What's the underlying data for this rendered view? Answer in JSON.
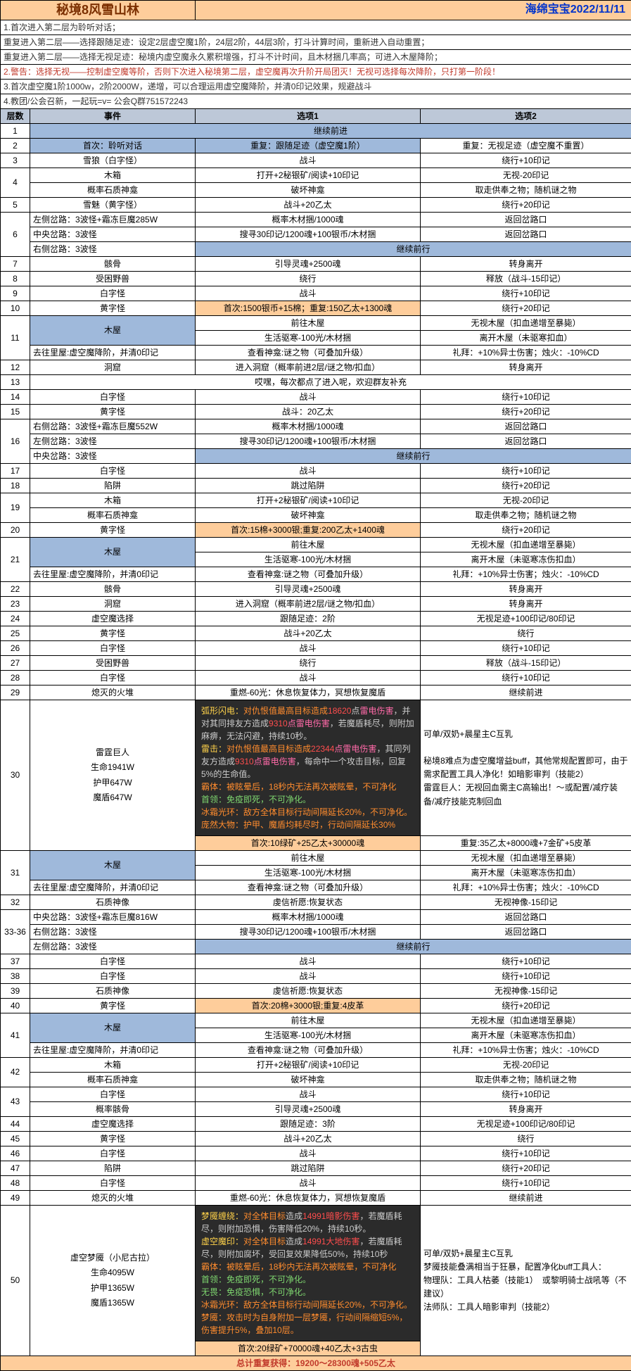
{
  "title": "秘境8风雪山林",
  "date_author": "海绵宝宝2022/11/11",
  "intro": {
    "l1": "1.首次进入第二层为聆听对话；",
    "l2": "重复进入第二层——选择跟随足迹：设定2层虚空魔1阶，24层2阶，44层3阶，打斗计算时间，重新进入自动重置；",
    "l3": "重复进入第二层——选择无视足迹：秘境内虚空魔永久累积增强，打斗不计时间，且木材捆几率高；可进入木屋降阶；",
    "l4": "2.警告：选择无视——控制虚空魔等阶，否则下次进入秘境第二层，虚空魔再次升阶开局团灭！无视可选择每次降阶，只打第一阶段！",
    "l5a": "3.首次虚空魔1阶1000w，2阶2000W，递增，可以合理运用虚空魔降阶，并清0印记效果，规避战斗",
    "l6": "4.教团/公会召新，一起玩=v= 公会Q群751572243"
  },
  "headers": {
    "layer": "层数",
    "event": "事件",
    "opt1": "选项1",
    "opt2": "选项2"
  },
  "r1": {
    "layer": "1",
    "opt1": "继续前进"
  },
  "r2": {
    "layer": "2",
    "event": "首次：聆听对话",
    "opt1": "重复：跟随足迹（虚空魔1阶）",
    "opt2": "重复：无视足迹（虚空魔不重置）"
  },
  "r3": {
    "layer": "3",
    "event": "雪狼（白字怪）",
    "opt1": "战斗",
    "opt2": "绕行+10印记"
  },
  "r4a": {
    "layer": "4",
    "event": "木箱",
    "opt1": "打开+2秘银矿/阅读+10印记",
    "opt2": "无视-20印记"
  },
  "r4b": {
    "event": "概率石质神龛",
    "opt1": "破坏神龛",
    "opt2": "取走供奉之物；随机谜之物"
  },
  "r5": {
    "layer": "5",
    "event": "雪魅（黄字怪）",
    "opt1": "战斗+20乙太",
    "opt2": "绕行+20印记"
  },
  "r6a": {
    "layer": "6",
    "event": "左侧岔路：3波怪+霜冻巨魔285W",
    "opt1": "概率木材捆/1000魂",
    "opt2": "返回岔路口"
  },
  "r6b": {
    "event": "中央岔路：3波怪",
    "opt1": "搜寻30印记/1200魂+100银币/木材捆",
    "opt2": "返回岔路口"
  },
  "r6c": {
    "event": "右侧岔路：3波怪",
    "opt1": "继续前行"
  },
  "r7": {
    "layer": "7",
    "event": "骸骨",
    "opt1": "引导灵魂+2500魂",
    "opt2": "转身离开"
  },
  "r8": {
    "layer": "8",
    "event": "受困野兽",
    "opt1": "绕行",
    "opt2": "释放（战斗-15印记）"
  },
  "r9": {
    "layer": "9",
    "event": "白字怪",
    "opt1": "战斗",
    "opt2": "绕行+10印记"
  },
  "r10": {
    "layer": "10",
    "event": "黄字怪",
    "opt1": "首次:1500银币+15棉；重复:150乙太+1300魂",
    "opt2": "绕行+20印记"
  },
  "r11a": {
    "layer": "11",
    "event": "木屋",
    "opt1": "前往木屋",
    "opt2": "无视木屋（扣血递增至暴毙）"
  },
  "r11b": {
    "opt1": "生活驱寒-100光/木材捆",
    "opt2": "离开木屋（未驱寒扣血）"
  },
  "r11c": {
    "event": "去往里屋:虚空魔降阶，并清0印记",
    "opt1": "查看神龛:谜之物（可叠加升级）",
    "opt2": "礼拜：+10%异士伤害；烛火：-10%CD"
  },
  "r12": {
    "layer": "12",
    "event": "洞窟",
    "opt1": "进入洞窟（概率前进2层/谜之物/扣血）",
    "opt2": "转身离开"
  },
  "r13": {
    "layer": "13",
    "opt1": "哎嘿，每次都点了进入呢，欢迎群友补充"
  },
  "r14": {
    "layer": "14",
    "event": "白字怪",
    "opt1": "战斗",
    "opt2": "绕行+10印记"
  },
  "r15": {
    "layer": "15",
    "event": "黄字怪",
    "opt1": "战斗：20乙太",
    "opt2": "绕行+20印记"
  },
  "r16a": {
    "layer": "16",
    "event": "右侧岔路：3波怪+霜冻巨魔552W",
    "opt1": "概率木材捆/1000魂",
    "opt2": "返回岔路口"
  },
  "r16b": {
    "event": "左侧岔路：3波怪",
    "opt1": "搜寻30印记/1200魂+100银币/木材捆",
    "opt2": "返回岔路口"
  },
  "r16c": {
    "event": "中央岔路：3波怪",
    "opt1": "继续前行"
  },
  "r17": {
    "layer": "17",
    "event": "白字怪",
    "opt1": "战斗",
    "opt2": "绕行+10印记"
  },
  "r18": {
    "layer": "18",
    "event": "陷阱",
    "opt1": "跳过陷阱",
    "opt2": "绕行+20印记"
  },
  "r19a": {
    "layer": "19",
    "event": "木箱",
    "opt1": "打开+2秘银矿/阅读+10印记",
    "opt2": "无视-20印记"
  },
  "r19b": {
    "event": "概率石质神龛",
    "opt1": "破坏神龛",
    "opt2": "取走供奉之物；随机谜之物"
  },
  "r20": {
    "layer": "20",
    "event": "黄字怪",
    "opt1": "首次:15棉+3000银;重复:200乙太+1400魂",
    "opt2": "绕行+20印记"
  },
  "r21a": {
    "layer": "21",
    "event": "木屋",
    "opt1": "前往木屋",
    "opt2": "无视木屋（扣血递增至暴毙）"
  },
  "r21b": {
    "opt1": "生活驱寒-100光/木材捆",
    "opt2": "离开木屋（未驱寒冻伤扣血）"
  },
  "r21c": {
    "event": "去往里屋:虚空魔降阶，并清0印记",
    "opt1": "查看神龛:谜之物（可叠加升级）",
    "opt2": "礼拜：+10%异士伤害；烛火：-10%CD"
  },
  "r22": {
    "layer": "22",
    "event": "骸骨",
    "opt1": "引导灵魂+2500魂",
    "opt2": "转身离开"
  },
  "r23": {
    "layer": "23",
    "event": "洞窟",
    "opt1": "进入洞窟（概率前进2层/谜之物/扣血）",
    "opt2": "转身离开"
  },
  "r24": {
    "layer": "24",
    "event": "虚空魔选择",
    "opt1": "跟随足迹：2阶",
    "opt2": "无视足迹+100印记/80印记"
  },
  "r25": {
    "layer": "25",
    "event": "黄字怪",
    "opt1": "战斗+20乙太",
    "opt2": "绕行"
  },
  "r26": {
    "layer": "26",
    "event": "白字怪",
    "opt1": "战斗",
    "opt2": "绕行+10印记"
  },
  "r27": {
    "layer": "27",
    "event": "受困野兽",
    "opt1": "绕行",
    "opt2": "释放（战斗-15印记）"
  },
  "r28": {
    "layer": "28",
    "event": "白字怪",
    "opt1": "战斗",
    "opt2": "绕行+10印记"
  },
  "r29": {
    "layer": "29",
    "event": "熄灭的火堆",
    "opt1": "重燃-60光：休息恢复体力，冥想恢复魔盾",
    "opt2": "继续前进"
  },
  "r30": {
    "layer": "30",
    "event_l1": "雷霆巨人",
    "event_l2": "生命1941W",
    "event_l3": "护甲647W",
    "event_l4": "魔盾647W",
    "opt2_l1": "可单/双奶+晨星主C互乳",
    "opt2_l2": "秘境8难点为虚空魔增益buff，其他常规配置即可，由于需求配置工具人净化！如暗影审判（技能2）",
    "opt2_l3": "雷霆巨人：无视回血需主C高输出！～或配置/减疗装备/减疗技能克制回血",
    "box": {
      "p1a": "弧形闪电：",
      "p1b": "对仇恨值最高目标造成",
      "p1c": "18620",
      "p1d": "点",
      "p1e": "雷电伤害",
      "p1f": "，并对其同排友方造成",
      "p1g": "9310",
      "p1h": "点雷电伤害",
      "p1i": "，若魔盾耗尽，则附加麻痹，无法闪避，持续10秒。",
      "p2a": "雷击：",
      "p2b": "对仇恨值最高目标造成",
      "p2c": "22344",
      "p2d": "点雷电伤害",
      "p2e": "，其同列友方造成",
      "p2f": "9310",
      "p2g": "点雷电伤害",
      "p2h": "，每命中一个攻击目标，回复5%的生命值。",
      "p3a": "霸体：",
      "p3b": "被眩晕后，18秒内无法再次被眩晕，不可净化",
      "p4a": "首领：",
      "p4b": "免疫即死，不可净化。",
      "p5a": "冰霜光环：",
      "p5b": "敌方全体目标行动间隔延长20%，不可净化。",
      "p6a": "庞然大物：",
      "p6b": "护甲、魔盾均耗尽时，行动间隔延长30%"
    },
    "reward1": "首次:10绿矿+25乙太+30000魂",
    "reward2": "重复:35乙太+8000魂+7金矿+5皮革"
  },
  "r31a": {
    "layer": "31",
    "event": "木屋",
    "opt1": "前往木屋",
    "opt2": "无视木屋（扣血递增至暴毙）"
  },
  "r31b": {
    "opt1": "生活驱寒-100光/木材捆",
    "opt2": "离开木屋（未驱寒冻伤扣血）"
  },
  "r31c": {
    "event": "去往里屋:虚空魔降阶，并清0印记",
    "opt1": "查看神龛:谜之物（可叠加升级）",
    "opt2": "礼拜：+10%异士伤害；烛火：-10%CD"
  },
  "r32": {
    "layer": "32",
    "event": "石质神像",
    "opt1": "虔信祈愿:恢复状态",
    "opt2": "无视神像-15印记"
  },
  "r33a": {
    "layer": "33-36",
    "event": "中央岔路：3波怪+霜冻巨魔816W",
    "opt1": "概率木材捆/1000魂",
    "opt2": "返回岔路口"
  },
  "r33b": {
    "event": "右侧岔路：3波怪",
    "opt1": "搜寻30印记/1200魂+100银币/木材捆",
    "opt2": "返回岔路口"
  },
  "r33c": {
    "event": "左侧岔路：3波怪",
    "opt1": "继续前行"
  },
  "r37": {
    "layer": "37",
    "event": "白字怪",
    "opt1": "战斗",
    "opt2": "绕行+10印记"
  },
  "r38": {
    "layer": "38",
    "event": "白字怪",
    "opt1": "战斗",
    "opt2": "绕行+10印记"
  },
  "r39": {
    "layer": "39",
    "event": "石质神像",
    "opt1": "虔信祈愿:恢复状态",
    "opt2": "无视神像-15印记"
  },
  "r40": {
    "layer": "40",
    "event": "黄字怪",
    "opt1": "首次:20棉+3000银;重复:4皮革",
    "opt2": "绕行+20印记"
  },
  "r41a": {
    "layer": "41",
    "event": "木屋",
    "opt1": "前往木屋",
    "opt2": "无视木屋（扣血递增至暴毙）"
  },
  "r41b": {
    "opt1": "生活驱寒-100光/木材捆",
    "opt2": "离开木屋（未驱寒冻伤扣血）"
  },
  "r41c": {
    "event": "去往里屋:虚空魔降阶，并清0印记",
    "opt1": "查看神龛:谜之物（可叠加升级）",
    "opt2": "礼拜：+10%异士伤害；烛火：-10%CD"
  },
  "r42a": {
    "layer": "42",
    "event": "木箱",
    "opt1": "打开+2秘银矿/阅读+10印记",
    "opt2": "无视-20印记"
  },
  "r42b": {
    "event": "概率石质神龛",
    "opt1": "破坏神龛",
    "opt2": "取走供奉之物；随机谜之物"
  },
  "r43a": {
    "layer": "43",
    "event": "白字怪",
    "opt1": "战斗",
    "opt2": "绕行+10印记"
  },
  "r43b": {
    "event": "概率骸骨",
    "opt1": "引导灵魂+2500魂",
    "opt2": "转身离开"
  },
  "r44": {
    "layer": "44",
    "event": "虚空魔选择",
    "opt1": "跟随足迹：3阶",
    "opt2": "无视足迹+100印记/80印记"
  },
  "r45": {
    "layer": "45",
    "event": "黄字怪",
    "opt1": "战斗+20乙太",
    "opt2": "绕行"
  },
  "r46": {
    "layer": "46",
    "event": "白字怪",
    "opt1": "战斗",
    "opt2": "绕行+10印记"
  },
  "r47": {
    "layer": "47",
    "event": "陷阱",
    "opt1": "跳过陷阱",
    "opt2": "绕行+20印记"
  },
  "r48": {
    "layer": "48",
    "event": "白字怪",
    "opt1": "战斗",
    "opt2": "绕行+10印记"
  },
  "r49": {
    "layer": "49",
    "event": "熄灭的火堆",
    "opt1": "重燃-60光：休息恢复体力，冥想恢复魔盾",
    "opt2": "继续前进"
  },
  "r50": {
    "layer": "50",
    "event_l1": "虚空梦魇（小尼古拉）",
    "event_l2": "生命4095W",
    "event_l3": "护甲1365W",
    "event_l4": "魔盾1365W",
    "opt2_l1": "可单/双奶+晨星主C互乳",
    "opt2_l2": "梦魇技能叠满相当于狂暴，配置净化buff工具人：",
    "opt2_l3": "物理队：工具人枯萎（技能1）　或黎明骑士战吼等（不建议）",
    "opt2_l4": "法师队：工具人暗影审判（技能2）",
    "box": {
      "p1a": "梦魇缠绕：",
      "p1b": "对全体目标",
      "p1c": "造成",
      "p1d": "14991暗影伤害",
      "p1e": "，若魔盾耗尽，则附加恐惧，伤害降低20%，持续10秒。",
      "p2a": "虚空魔印：",
      "p2b": "对全体目标",
      "p2c": "造成",
      "p2d": "14991大地伤害",
      "p2e": "，若魔盾耗尽，则附加腐坏，受回复效果降低50%，持续10秒",
      "p3a": "霸体：",
      "p3b": "被眩晕后，18秒内无法再次被眩晕，不可净化",
      "p4a": "首领：",
      "p4b": "免疫即死，不可净化。",
      "p5a": "无畏：",
      "p5b": "免疫恐惧，不可净化。",
      "p6a": "冰霜光环：",
      "p6b": "敌方全体目标行动间隔延长20%，不可净化。",
      "p7a": "梦魇：",
      "p7b": "攻击时为自身附加一层梦魇，行动间隔缩短5%，伤害提升5%，叠加10层。"
    },
    "reward1": "首次:20绿矿+70000魂+40乙太+3古虫"
  },
  "summary": "总计重复获得：19200～28300魂+505乙太"
}
